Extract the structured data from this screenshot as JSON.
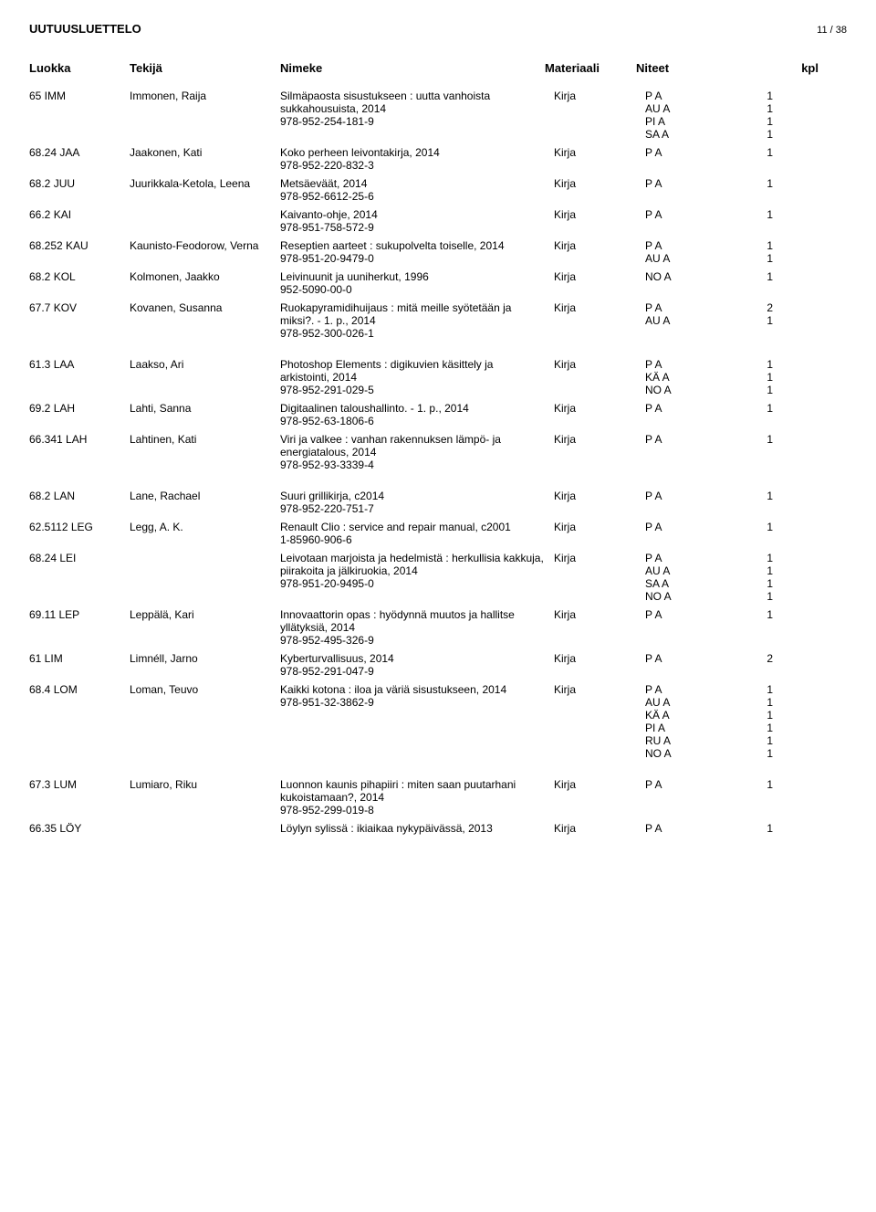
{
  "header": {
    "title": "UUTUUSLUETTELO",
    "pageNumber": "11 / 38"
  },
  "columns": {
    "luokka": "Luokka",
    "tekija": "Tekijä",
    "nimeke": "Nimeke",
    "materiaali": "Materiaali",
    "niteet": "Niteet",
    "kpl": "kpl"
  },
  "groups": [
    {
      "entries": [
        {
          "luokka": "65 IMM",
          "tekija": "Immonen, Raija",
          "nimeke": "Silmäpaosta sisustukseen : uutta vanhoista sukkahousuista, 2014\n978-952-254-181-9",
          "materiaali": "Kirja",
          "niteet": [
            {
              "code": "P A",
              "kpl": "1"
            },
            {
              "code": "AU A",
              "kpl": "1"
            },
            {
              "code": "PI A",
              "kpl": "1"
            },
            {
              "code": "SA A",
              "kpl": "1"
            }
          ]
        },
        {
          "luokka": "68.24 JAA",
          "tekija": "Jaakonen, Kati",
          "nimeke": "Koko perheen leivontakirja, 2014\n978-952-220-832-3",
          "materiaali": "Kirja",
          "niteet": [
            {
              "code": "P A",
              "kpl": "1"
            }
          ]
        },
        {
          "luokka": "68.2 JUU",
          "tekija": "Juurikkala-Ketola, Leena",
          "nimeke": "Metsäeväät, 2014\n978-952-6612-25-6",
          "materiaali": "Kirja",
          "niteet": [
            {
              "code": "P A",
              "kpl": "1"
            }
          ]
        },
        {
          "luokka": "66.2 KAI",
          "tekija": "",
          "nimeke": "Kaivanto-ohje, 2014\n978-951-758-572-9",
          "materiaali": "Kirja",
          "niteet": [
            {
              "code": "P A",
              "kpl": "1"
            }
          ]
        },
        {
          "luokka": "68.252 KAU",
          "tekija": "Kaunisto-Feodorow, Verna",
          "nimeke": "Reseptien aarteet : sukupolvelta toiselle, 2014\n978-951-20-9479-0",
          "materiaali": "Kirja",
          "niteet": [
            {
              "code": "P A",
              "kpl": "1"
            },
            {
              "code": "AU A",
              "kpl": "1"
            }
          ]
        },
        {
          "luokka": "68.2 KOL",
          "tekija": "Kolmonen, Jaakko",
          "nimeke": "Leivinuunit ja uuniherkut, 1996\n952-5090-00-0",
          "materiaali": "Kirja",
          "niteet": [
            {
              "code": "NO A",
              "kpl": "1"
            }
          ]
        },
        {
          "luokka": "67.7 KOV",
          "tekija": "Kovanen, Susanna",
          "nimeke": "Ruokapyramidihuijaus : mitä meille syötetään ja miksi?. - 1. p., 2014\n978-952-300-026-1",
          "materiaali": "Kirja",
          "niteet": [
            {
              "code": "P A",
              "kpl": "2"
            },
            {
              "code": "AU A",
              "kpl": "1"
            }
          ]
        }
      ]
    },
    {
      "entries": [
        {
          "luokka": "61.3 LAA",
          "tekija": "Laakso, Ari",
          "nimeke": "Photoshop Elements : digikuvien käsittely ja arkistointi, 2014\n978-952-291-029-5",
          "materiaali": "Kirja",
          "niteet": [
            {
              "code": "P A",
              "kpl": "1"
            },
            {
              "code": "KÄ A",
              "kpl": "1"
            },
            {
              "code": "NO A",
              "kpl": "1"
            }
          ]
        },
        {
          "luokka": "69.2 LAH",
          "tekija": "Lahti, Sanna",
          "nimeke": "Digitaalinen taloushallinto. - 1. p., 2014\n978-952-63-1806-6",
          "materiaali": "Kirja",
          "niteet": [
            {
              "code": "P A",
              "kpl": "1"
            }
          ]
        },
        {
          "luokka": "66.341 LAH",
          "tekija": "Lahtinen, Kati",
          "nimeke": "Viri ja valkee : vanhan rakennuksen lämpö- ja energiatalous, 2014\n978-952-93-3339-4",
          "materiaali": "Kirja",
          "niteet": [
            {
              "code": "P A",
              "kpl": "1"
            }
          ]
        }
      ]
    },
    {
      "entries": [
        {
          "luokka": "68.2 LAN",
          "tekija": "Lane, Rachael",
          "nimeke": "Suuri grillikirja, c2014\n978-952-220-751-7",
          "materiaali": "Kirja",
          "niteet": [
            {
              "code": "P A",
              "kpl": "1"
            }
          ]
        },
        {
          "luokka": "62.5112 LEG",
          "tekija": "Legg, A. K.",
          "nimeke": "Renault Clio : service and repair manual, c2001\n1-85960-906-6",
          "materiaali": "Kirja",
          "niteet": [
            {
              "code": "P A",
              "kpl": "1"
            }
          ]
        },
        {
          "luokka": "68.24 LEI",
          "tekija": "",
          "nimeke": "Leivotaan marjoista ja hedelmistä : herkullisia kakkuja, piirakoita ja jälkiruokia, 2014\n978-951-20-9495-0",
          "materiaali": "Kirja",
          "niteet": [
            {
              "code": "P A",
              "kpl": "1"
            },
            {
              "code": "AU A",
              "kpl": "1"
            },
            {
              "code": "SA A",
              "kpl": "1"
            },
            {
              "code": "NO A",
              "kpl": "1"
            }
          ]
        },
        {
          "luokka": "69.11 LEP",
          "tekija": "Leppälä, Kari",
          "nimeke": "Innovaattorin opas : hyödynnä muutos ja hallitse yllätyksiä, 2014\n978-952-495-326-9",
          "materiaali": "Kirja",
          "niteet": [
            {
              "code": "P A",
              "kpl": "1"
            }
          ]
        },
        {
          "luokka": "61 LIM",
          "tekija": "Limnéll, Jarno",
          "nimeke": "Kyberturvallisuus, 2014\n978-952-291-047-9",
          "materiaali": "Kirja",
          "niteet": [
            {
              "code": "P A",
              "kpl": "2"
            }
          ]
        },
        {
          "luokka": "68.4 LOM",
          "tekija": "Loman, Teuvo",
          "nimeke": "Kaikki kotona : iloa ja väriä sisustukseen, 2014\n978-951-32-3862-9",
          "materiaali": "Kirja",
          "niteet": [
            {
              "code": "P A",
              "kpl": "1"
            },
            {
              "code": "AU A",
              "kpl": "1"
            },
            {
              "code": "KÄ A",
              "kpl": "1"
            },
            {
              "code": "PI A",
              "kpl": "1"
            },
            {
              "code": "RU A",
              "kpl": "1"
            },
            {
              "code": "NO A",
              "kpl": "1"
            }
          ]
        }
      ]
    },
    {
      "entries": [
        {
          "luokka": "67.3 LUM",
          "tekija": "Lumiaro, Riku",
          "nimeke": "Luonnon kaunis pihapiiri : miten saan puutarhani kukoistamaan?, 2014\n978-952-299-019-8",
          "materiaali": "Kirja",
          "niteet": [
            {
              "code": "P A",
              "kpl": "1"
            }
          ]
        },
        {
          "luokka": "66.35 LÖY",
          "tekija": "",
          "nimeke": "Löylyn sylissä : ikiaikaa nykypäivässä, 2013",
          "materiaali": "Kirja",
          "niteet": [
            {
              "code": "P A",
              "kpl": "1"
            }
          ]
        }
      ]
    }
  ]
}
